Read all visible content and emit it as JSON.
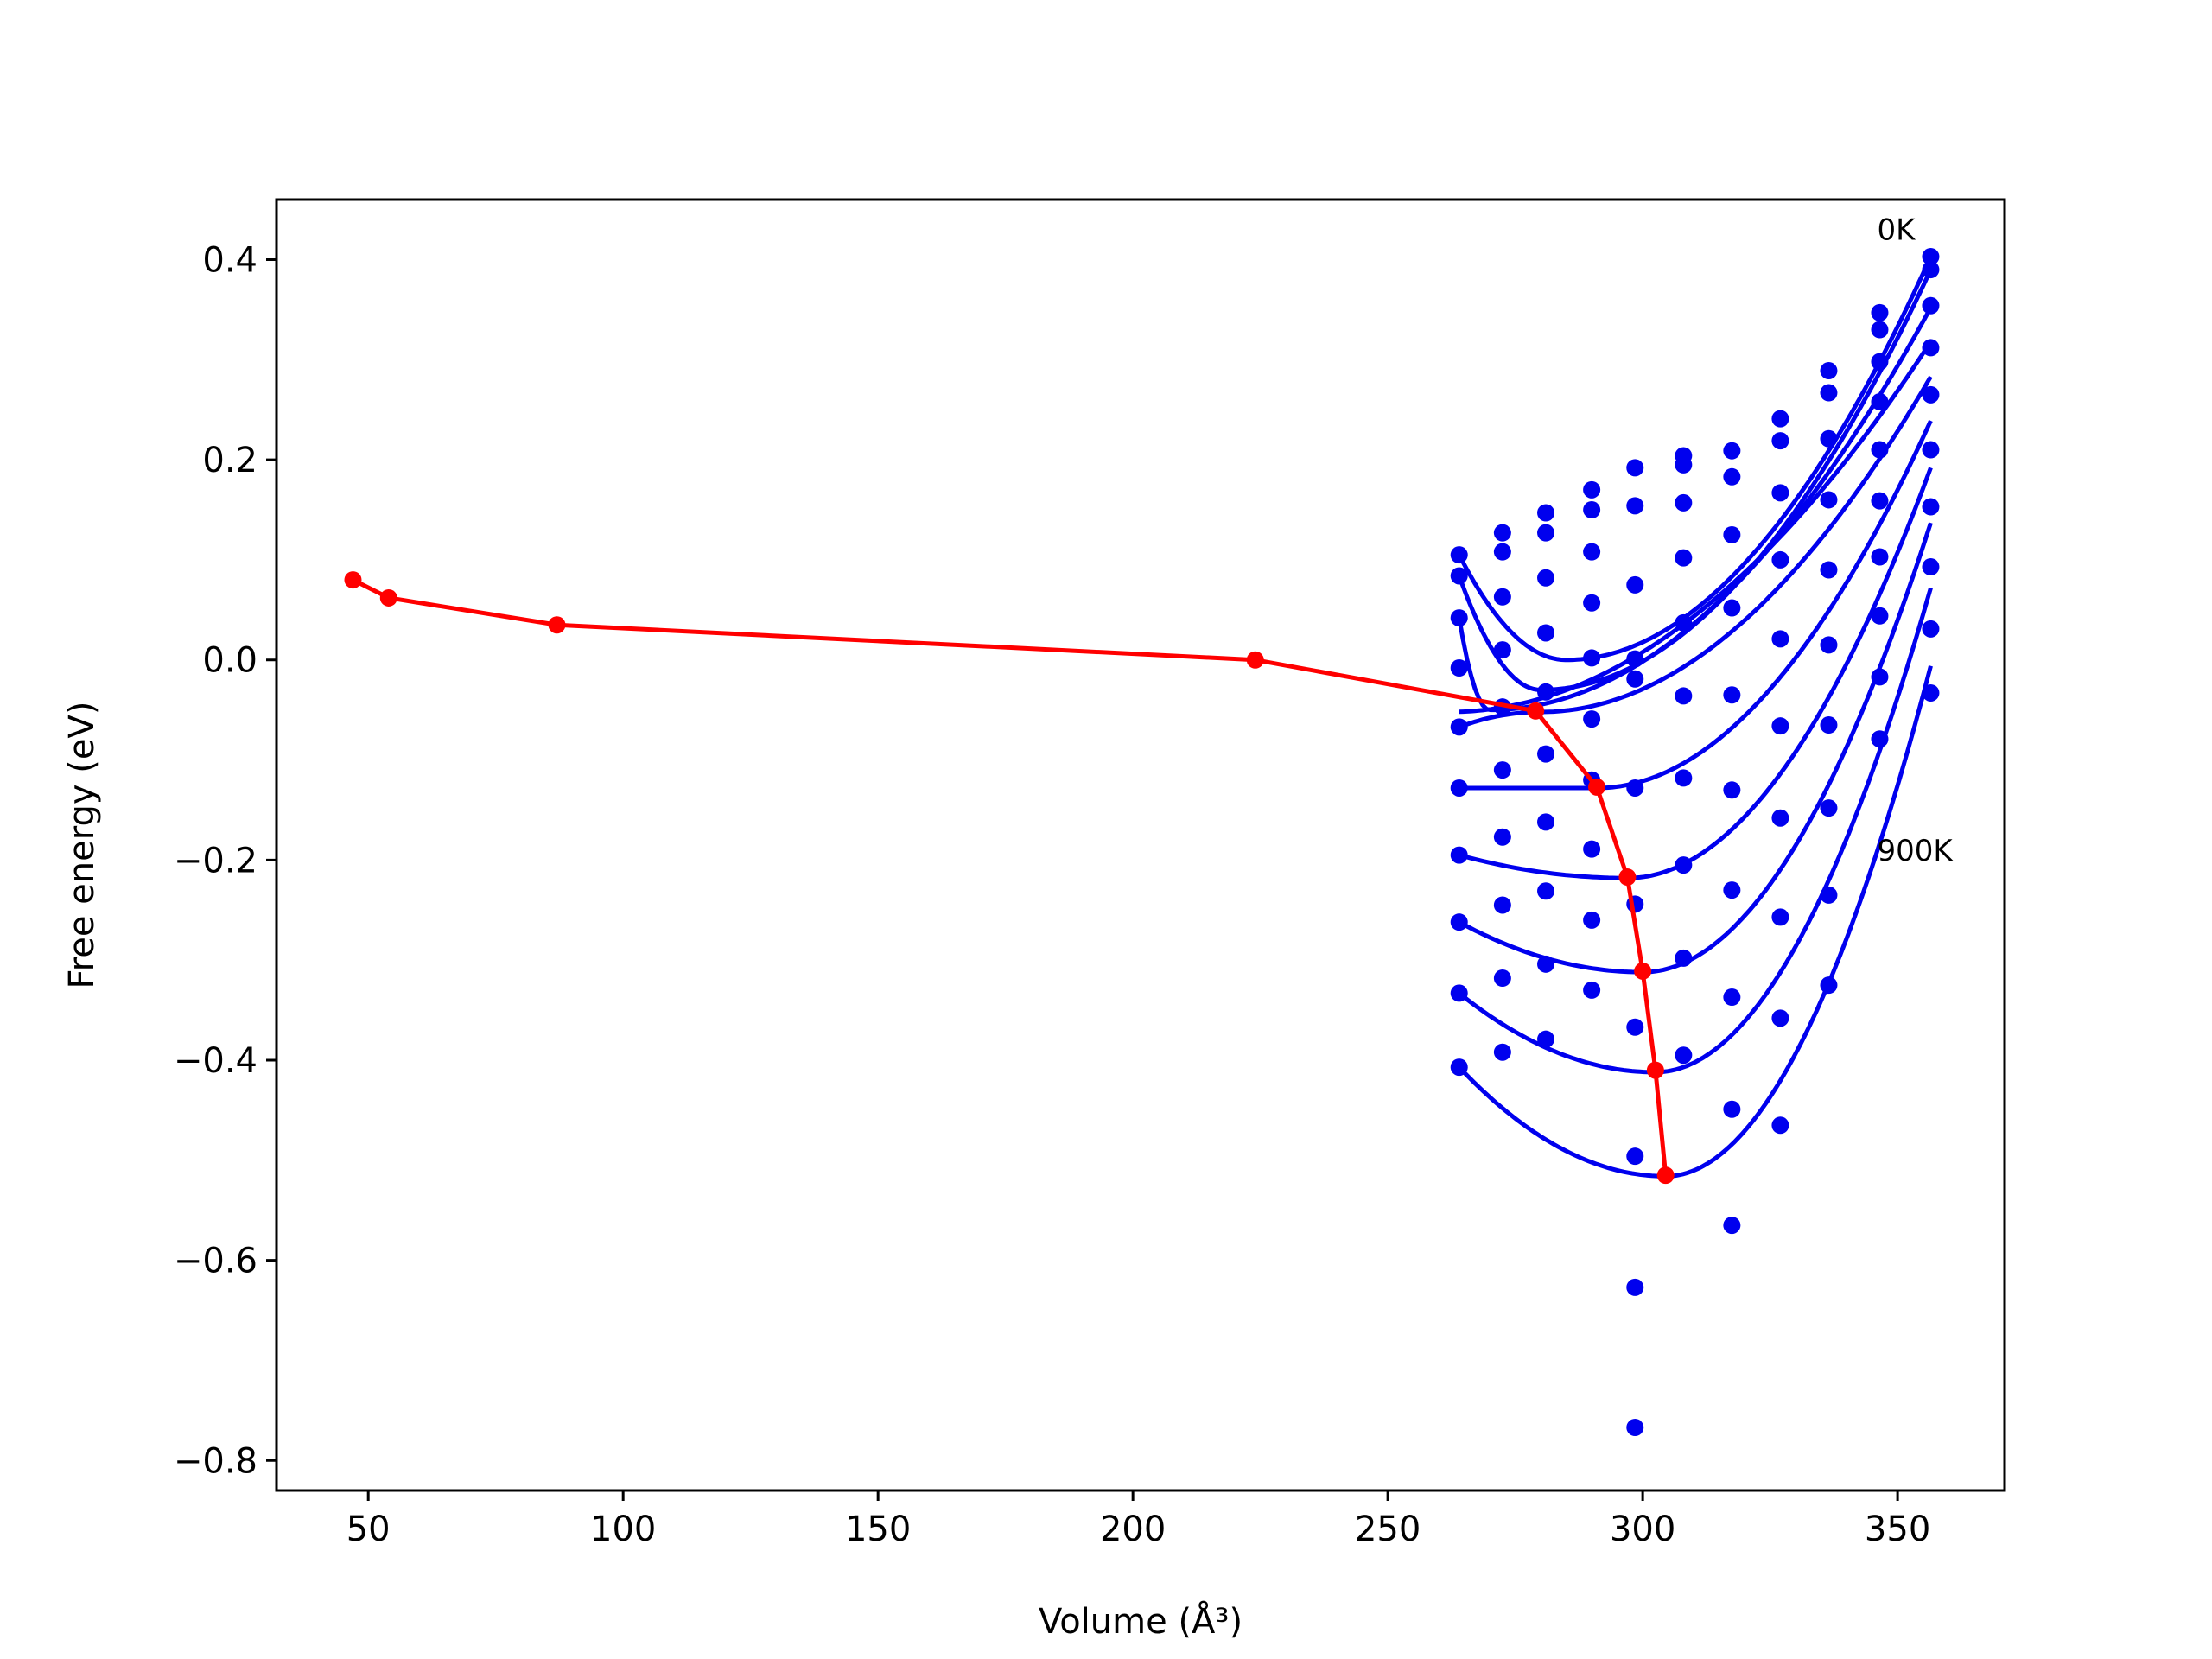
{
  "chart_data": {
    "type": "scatter",
    "title": "",
    "xlabel": "Volume (Å³)",
    "ylabel": "Free energy (eV)",
    "xlim": [
      32,
      371
    ],
    "ylim": [
      -0.83,
      0.46
    ],
    "xticks": [
      50,
      100,
      150,
      200,
      250,
      300,
      350
    ],
    "yticks": [
      0.4,
      0.2,
      0.0,
      -0.2,
      -0.4,
      -0.6,
      -0.8
    ],
    "xtick_labels": [
      "50",
      "100",
      "150",
      "200",
      "250",
      "300",
      "350"
    ],
    "ytick_labels": [
      "0.4",
      "0.2",
      "0.0",
      "−0.2",
      "−0.4",
      "−0.6",
      "−0.8"
    ],
    "grid": false,
    "annotations": [
      {
        "text": "0K",
        "x": 346,
        "y": 0.43
      },
      {
        "text": "900K",
        "x": 346,
        "y": -0.19
      }
    ],
    "colors": {
      "points": "#0000ee",
      "fits": "#0000ee",
      "minima_path": "#ff0000"
    },
    "volumes": [
      264,
      272.5,
      281,
      290,
      298.5,
      308,
      317.5,
      327,
      336.5,
      346.5,
      356.5
    ],
    "series": [
      {
        "values": [
          0.105,
          0.127,
          0.147,
          0.17,
          0.192,
          0.204,
          0.209,
          0.241,
          0.289,
          0.347,
          0.403
        ]
      },
      {
        "values": [
          0.084,
          0.108,
          0.127,
          0.15,
          0.154,
          0.195,
          0.183,
          0.219,
          0.267,
          0.33,
          0.39
        ]
      },
      {
        "values": [
          0.042,
          0.063,
          0.082,
          0.108,
          0.075,
          0.157,
          0.125,
          0.167,
          0.221,
          0.298,
          0.354
        ]
      },
      {
        "values": [
          -0.008,
          0.01,
          0.027,
          0.057,
          0.001,
          0.102,
          0.052,
          0.1,
          0.16,
          0.258,
          0.312
        ]
      },
      {
        "values": [
          -0.067,
          -0.047,
          -0.032,
          0.002,
          -0.019,
          0.037,
          -0.035,
          0.021,
          0.09,
          0.21,
          0.265
        ]
      },
      {
        "values": [
          -0.128,
          -0.11,
          -0.094,
          -0.059,
          -0.128,
          -0.036,
          -0.13,
          -0.066,
          0.015,
          0.159,
          0.21
        ]
      },
      {
        "values": [
          -0.195,
          -0.177,
          -0.162,
          -0.12,
          -0.244,
          -0.118,
          -0.23,
          -0.158,
          -0.065,
          0.103,
          0.153
        ]
      },
      {
        "values": [
          -0.262,
          -0.245,
          -0.231,
          -0.189,
          -0.367,
          -0.205,
          -0.337,
          -0.257,
          -0.148,
          0.044,
          0.093
        ]
      },
      {
        "values": [
          -0.333,
          -0.318,
          -0.304,
          -0.26,
          -0.496,
          -0.298,
          -0.449,
          -0.358,
          -0.235,
          -0.017,
          0.031
        ]
      },
      {
        "values": [
          -0.407,
          -0.392,
          -0.379,
          -0.33,
          -0.627,
          -0.395,
          -0.565,
          -0.465,
          -0.325,
          -0.079,
          -0.033
        ]
      },
      {
        "values": [
          null,
          null,
          null,
          null,
          -0.767,
          null,
          null,
          null,
          null,
          null,
          null
        ]
      }
    ],
    "fits": [
      {
        "x0": 264,
        "xmin": 285,
        "ymin": 0.0,
        "xend": 356.5,
        "yend": 0.403
      },
      {
        "x0": 264,
        "xmin": 280,
        "ymin": -0.03,
        "xend": 356.5,
        "yend": 0.39
      },
      {
        "x0": 264,
        "xmin": 270,
        "ymin": -0.05,
        "xend": 356.5,
        "yend": 0.352
      },
      {
        "x0": 264,
        "xmin": 262,
        "ymin": -0.052,
        "xend": 356.5,
        "yend": 0.318
      },
      {
        "x0": 264,
        "xmin": 280,
        "ymin": -0.052,
        "xend": 356.5,
        "yend": 0.283
      },
      {
        "x0": 264,
        "xmin": 291,
        "ymin": -0.128,
        "xend": 356.5,
        "yend": 0.239
      },
      {
        "x0": 264,
        "xmin": 297,
        "ymin": -0.218,
        "xend": 356.5,
        "yend": 0.192
      },
      {
        "x0": 264,
        "xmin": 300,
        "ymin": -0.312,
        "xend": 356.5,
        "yend": 0.137
      },
      {
        "x0": 264,
        "xmin": 302.5,
        "ymin": -0.412,
        "xend": 356.5,
        "yend": 0.072
      },
      {
        "x0": 264,
        "xmin": 304.5,
        "ymin": -0.516,
        "xend": 356.5,
        "yend": -0.006
      }
    ],
    "minima_path": {
      "x": [
        47,
        54,
        87,
        224,
        279,
        291,
        297,
        300,
        302.5,
        304.5
      ],
      "y": [
        0.08,
        0.062,
        0.035,
        0.0,
        -0.051,
        -0.127,
        -0.217,
        -0.311,
        -0.41,
        -0.515
      ]
    }
  }
}
